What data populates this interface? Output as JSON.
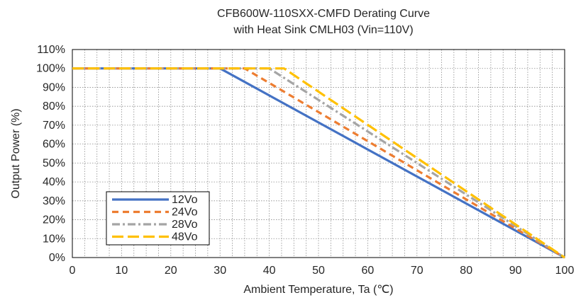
{
  "chart_data": {
    "type": "line",
    "title": [
      "CFB600W-110SXX-CMFD  Derating Curve",
      "with Heat Sink CMLH03 (Vin=110V)"
    ],
    "xlabel": "Ambient Temperature, Ta (℃)",
    "ylabel": "Output Power (%)",
    "xlim": [
      0,
      100
    ],
    "ylim": [
      0,
      110
    ],
    "xticks": [
      0,
      10,
      20,
      30,
      40,
      50,
      60,
      70,
      80,
      90,
      100
    ],
    "xtick_labels": [
      "0",
      "10",
      "20",
      "30",
      "40",
      "50",
      "60",
      "70",
      "80",
      "90",
      "100"
    ],
    "yticks": [
      0,
      10,
      20,
      30,
      40,
      50,
      60,
      70,
      80,
      90,
      100,
      110
    ],
    "ytick_labels": [
      "0%",
      "10%",
      "20%",
      "30%",
      "40%",
      "50%",
      "60%",
      "70%",
      "80%",
      "90%",
      "100%",
      "110%"
    ],
    "grid": "dotted",
    "legend_position": "bottom-left",
    "series": [
      {
        "name": "12Vo",
        "color": "#4472C4",
        "dash": "solid",
        "x": [
          0,
          30,
          100
        ],
        "y": [
          100,
          100,
          0
        ]
      },
      {
        "name": "24Vo",
        "color": "#ED7D31",
        "dash": "dash",
        "x": [
          0,
          35,
          100
        ],
        "y": [
          100,
          100,
          0
        ]
      },
      {
        "name": "28Vo",
        "color": "#A5A5A5",
        "dash": "dashdot",
        "x": [
          0,
          40,
          100
        ],
        "y": [
          100,
          100,
          0
        ]
      },
      {
        "name": "48Vo",
        "color": "#FFC000",
        "dash": "longdash",
        "x": [
          0,
          43,
          100
        ],
        "y": [
          100,
          100,
          0
        ]
      }
    ]
  }
}
